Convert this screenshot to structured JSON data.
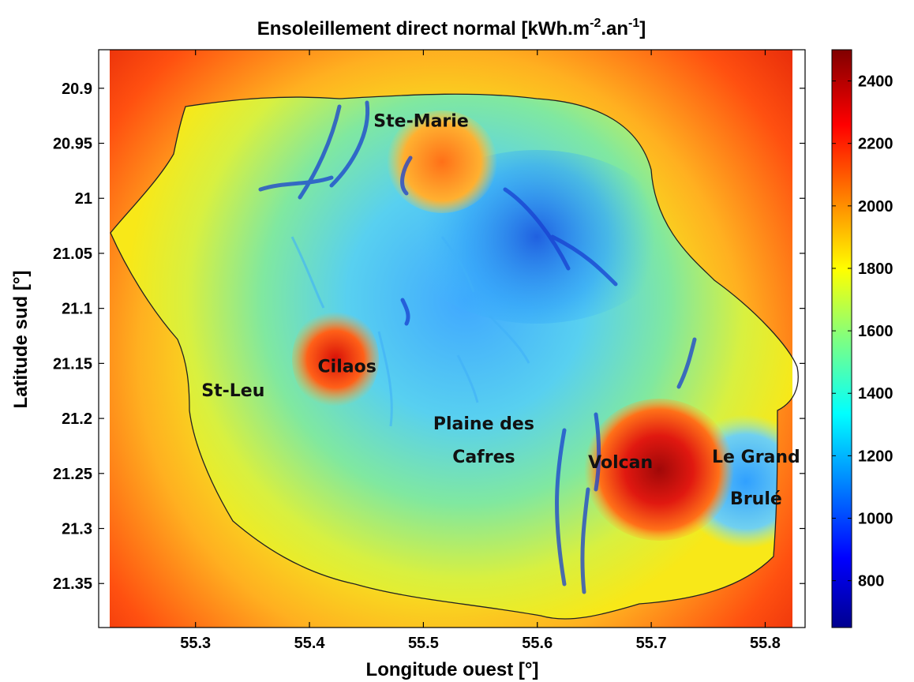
{
  "chart_data": {
    "type": "heatmap",
    "title_main": "Ensoleillement direct normal [kWh.m",
    "title_sup1": "-2",
    "title_mid": ".an",
    "title_sup2": "-1",
    "title_end": "]",
    "xlabel": "Longitude ouest [°]",
    "ylabel": "Latitude sud [°]",
    "xlim": [
      55.215,
      55.835
    ],
    "ylim": [
      20.865,
      21.39
    ],
    "x_ticks": [
      "55.3",
      "55.4",
      "55.5",
      "55.6",
      "55.7",
      "55.8"
    ],
    "x_tick_values": [
      55.3,
      55.4,
      55.5,
      55.6,
      55.7,
      55.8
    ],
    "y_ticks": [
      "20.9",
      "20.95",
      "21",
      "21.05",
      "21.1",
      "21.15",
      "21.2",
      "21.25",
      "21.3",
      "21.35"
    ],
    "y_tick_values": [
      20.9,
      20.95,
      21.0,
      21.05,
      21.1,
      21.15,
      21.2,
      21.25,
      21.3,
      21.35
    ],
    "colorbar": {
      "range": [
        650,
        2500
      ],
      "ticks": [
        "800",
        "1000",
        "1200",
        "1400",
        "1600",
        "1800",
        "2000",
        "2200",
        "2400"
      ],
      "tick_values": [
        800,
        1000,
        1200,
        1400,
        1600,
        1800,
        2000,
        2200,
        2400
      ],
      "colormap": "jet"
    },
    "places": [
      {
        "name": "Ste-Marie",
        "lon": 55.498,
        "lat": 20.935
      },
      {
        "name": "Cilaos",
        "lon": 55.433,
        "lat": 21.158
      },
      {
        "name": "St-Leu",
        "lon": 55.333,
        "lat": 21.18
      },
      {
        "name": "Plaine des",
        "lon": 55.553,
        "lat": 21.21
      },
      {
        "name": "Cafres",
        "lon": 55.553,
        "lat": 21.24
      },
      {
        "name": "Volcan",
        "lon": 55.673,
        "lat": 21.245
      },
      {
        "name": "Le Grand",
        "lon": 55.792,
        "lat": 21.24
      },
      {
        "name": "Brulé",
        "lon": 55.792,
        "lat": 21.278
      }
    ]
  }
}
